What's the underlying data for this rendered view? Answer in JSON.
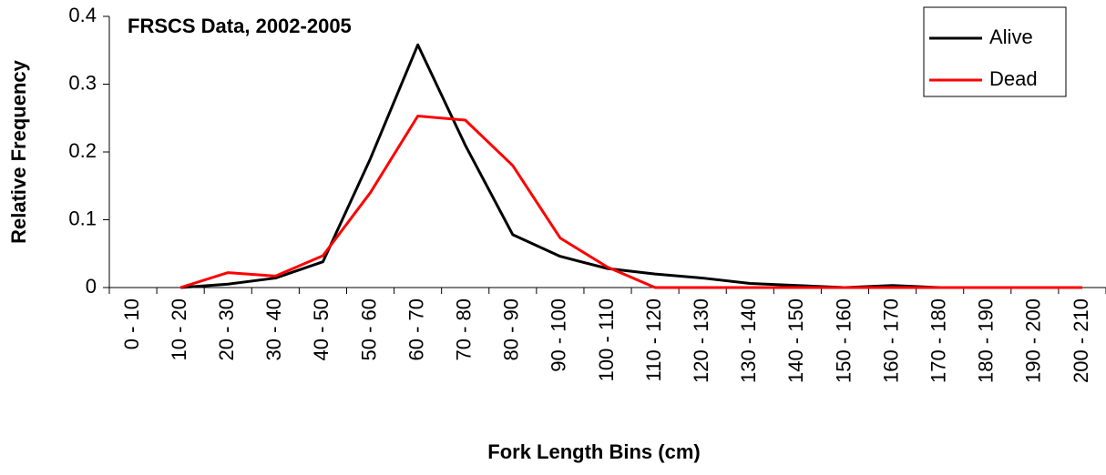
{
  "chart_data": {
    "type": "line",
    "title": "FRSCS Data, 2002-2005",
    "x_label": "Fork Length Bins (cm)",
    "y_label": "Relative Frequency",
    "categories": [
      "0 - 10",
      "10 - 20",
      "20 - 30",
      "30 - 40",
      "40 - 50",
      "50 - 60",
      "60 - 70",
      "70 - 80",
      "80 - 90",
      "90 - 100",
      "100 - 110",
      "110 - 120",
      "120 - 130",
      "130 - 140",
      "140 - 150",
      "150 - 160",
      "160 - 170",
      "170 - 180",
      "180 - 190",
      "190 - 200",
      "200 - 210"
    ],
    "series": [
      {
        "name": "Alive",
        "color": "#000000",
        "values": [
          null,
          0,
          0.005,
          0.014,
          0.038,
          0.19,
          0.358,
          0.21,
          0.078,
          0.046,
          0.028,
          0.02,
          0.014,
          0.006,
          0.003,
          0,
          0.003,
          0,
          0,
          0,
          0
        ]
      },
      {
        "name": "Dead",
        "color": "#ff0000",
        "values": [
          null,
          0,
          0.022,
          0.017,
          0.047,
          0.14,
          0.253,
          0.247,
          0.18,
          0.073,
          0.03,
          0,
          0,
          0,
          0,
          0,
          0,
          0,
          0,
          0,
          0
        ]
      }
    ],
    "ylim": [
      0,
      0.4
    ],
    "yticks": [
      0,
      0.1,
      0.2,
      0.3,
      0.4
    ],
    "grid": false,
    "legend": "top-right"
  }
}
